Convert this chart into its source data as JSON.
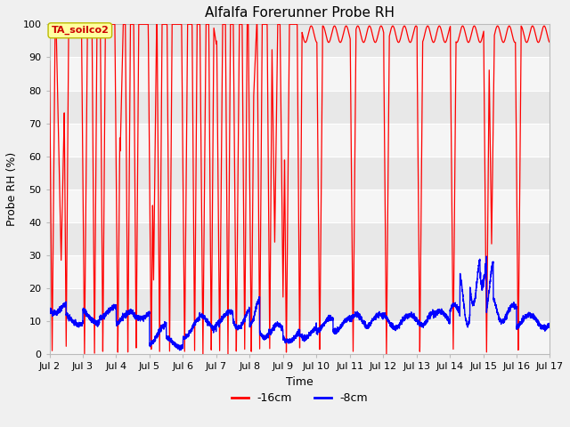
{
  "title": "Alfalfa Forerunner Probe RH",
  "xlabel": "Time",
  "ylabel": "Probe RH (%)",
  "ylim": [
    0,
    100
  ],
  "xlim_start": 2,
  "xlim_end": 17,
  "xtick_labels": [
    "Jul 2",
    "Jul 3",
    "Jul 4",
    "Jul 5",
    "Jul 6",
    "Jul 7",
    "Jul 8",
    "Jul 9",
    "Jul 10",
    "Jul 11",
    "Jul 12",
    "Jul 13",
    "Jul 14",
    "Jul 15",
    "Jul 16",
    "Jul 17"
  ],
  "xtick_positions": [
    2,
    3,
    4,
    5,
    6,
    7,
    8,
    9,
    10,
    11,
    12,
    13,
    14,
    15,
    16,
    17
  ],
  "ytick_positions": [
    0,
    10,
    20,
    30,
    40,
    50,
    60,
    70,
    80,
    90,
    100
  ],
  "color_red": "#ff0000",
  "color_blue": "#0000ff",
  "label_red": "-16cm",
  "label_blue": "-8cm",
  "annotation_text": "TA_soilco2",
  "bg_color_light": "#e8e8e8",
  "bg_color_white": "#f5f5f5",
  "grid_color": "#ffffff",
  "title_fontsize": 11,
  "axis_label_fontsize": 9,
  "tick_fontsize": 8,
  "fig_facecolor": "#f0f0f0"
}
